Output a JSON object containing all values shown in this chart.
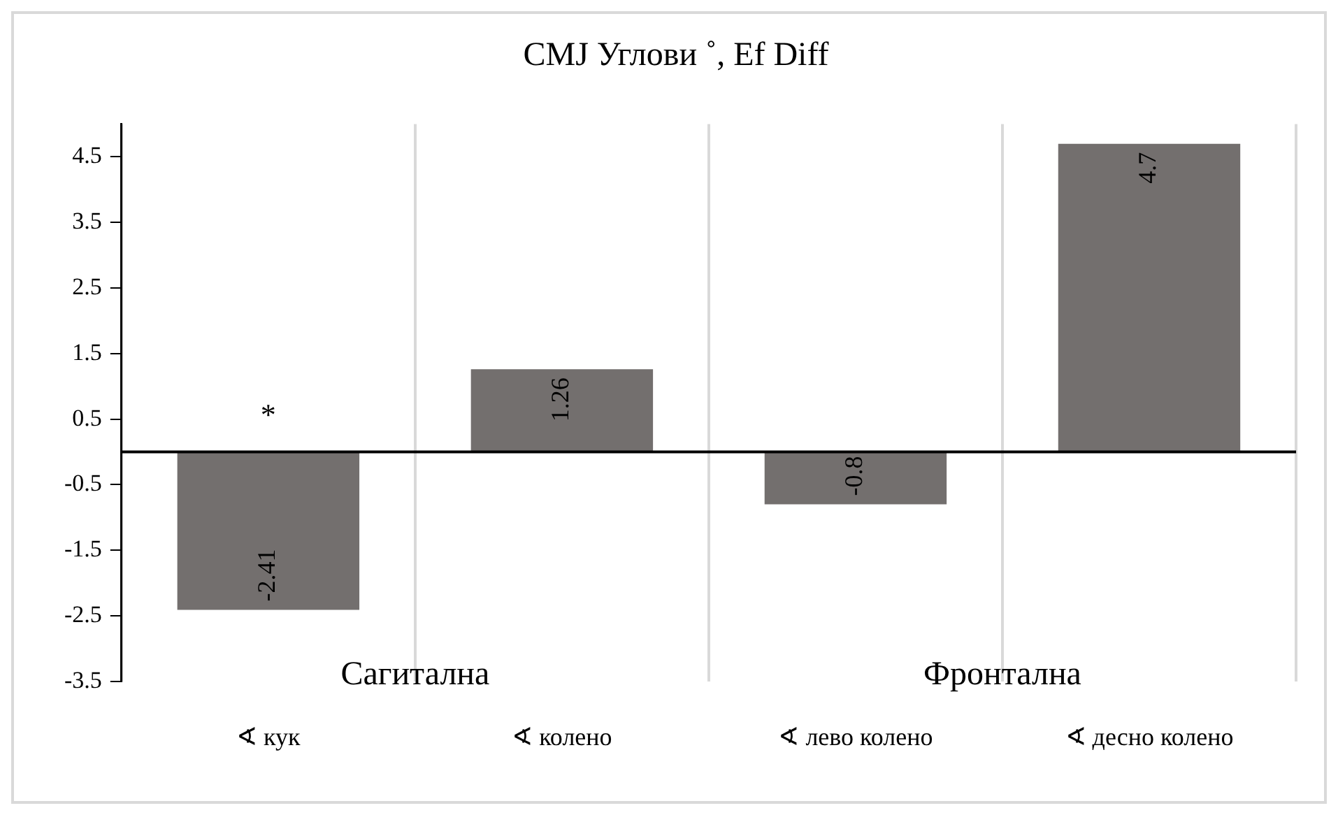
{
  "chart_data": {
    "type": "bar",
    "title": "CMJ Углови ˚, Ef Diff",
    "categories": [
      "∢ кук",
      "∢ колено",
      "∢ лево колено",
      "∢ десно колено"
    ],
    "values": [
      -2.41,
      1.26,
      -0.8,
      4.7
    ],
    "color": "#736f6e",
    "ylim": [
      -3.5,
      5
    ],
    "yticks": [
      -3.5,
      -2.5,
      -1.5,
      -0.5,
      0.5,
      1.5,
      2.5,
      3.5,
      4.5
    ],
    "grid": "x",
    "legend": false,
    "data_labels": true,
    "annotations": [
      "*",
      "Сагитална",
      "Фронтална"
    ]
  }
}
